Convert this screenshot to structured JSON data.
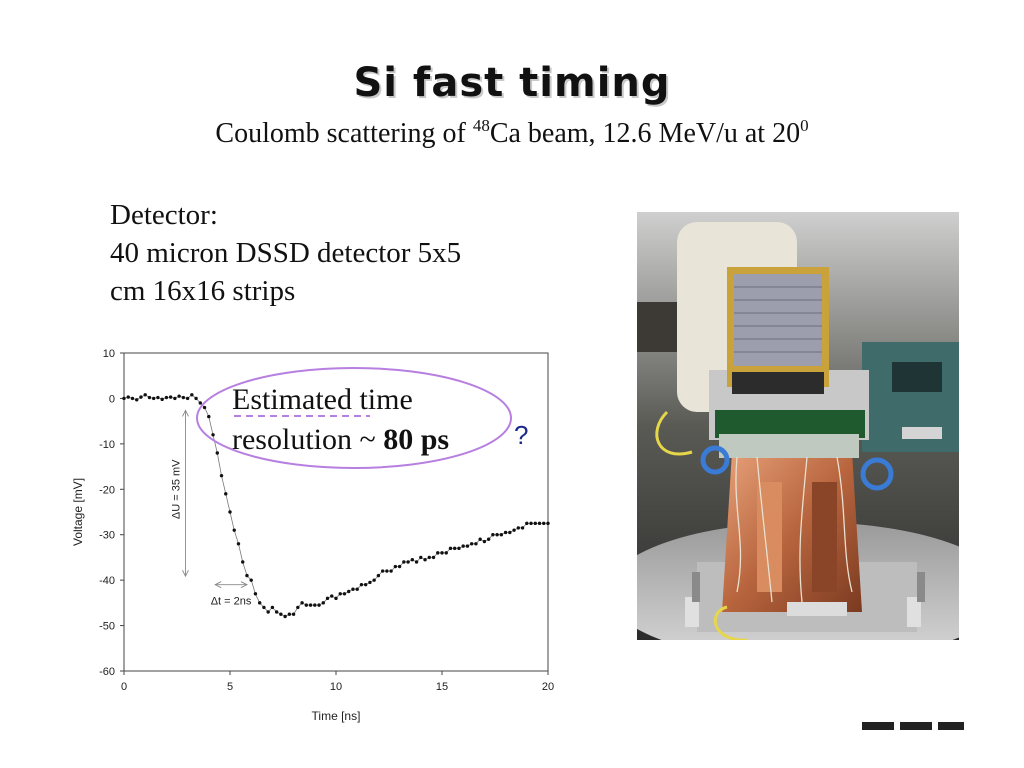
{
  "slide": {
    "title": "Si fast timing",
    "subtitle_prefix": "Coulomb scattering of ",
    "subtitle_sup": "48",
    "subtitle_middle": "Ca beam, 12.6 MeV/u at 20",
    "subtitle_sup2": "0",
    "detector_lines": [
      "Detector:",
      "40 micron DSSD detector 5x5",
      "cm 16x16 strips"
    ]
  },
  "callout": {
    "line1": "Estimated time",
    "line2_prefix": "resolution ~ ",
    "line2_bold": "80 ps",
    "question": "?",
    "ellipse_color": "#b77fe0",
    "underline_color": "#b77fe0"
  },
  "photo": {
    "description_icon": "detector-photo",
    "colors": {
      "copper": "#c77b4f",
      "gold": "#c9a23c",
      "background": "#3a3a3a",
      "wire": "#e6d74a",
      "loop": "#3a7bd5"
    }
  },
  "chart_data": {
    "type": "scatter",
    "xlabel": "Time [ns]",
    "ylabel": "Voltage [mV]",
    "xlim": [
      0,
      20
    ],
    "ylim": [
      -60,
      10
    ],
    "xticks": [
      0,
      5,
      10,
      15,
      20
    ],
    "yticks": [
      10,
      0,
      -10,
      -20,
      -30,
      -40,
      -50,
      -60
    ],
    "grid": false,
    "marker_color": "#111111",
    "line_color": "#777777",
    "annotations": [
      {
        "text": "ΔU = 35 mV",
        "x": 2.9,
        "y_from": 0,
        "y_to": -40
      },
      {
        "text": "Δt = 2ns",
        "x_from": 4.3,
        "x_to": 5.8,
        "y": -41
      }
    ],
    "series": [
      {
        "x": [
          0,
          0.2,
          0.4,
          0.6,
          0.8,
          1.0,
          1.2,
          1.4,
          1.6,
          1.8,
          2.0,
          2.2,
          2.4,
          2.6,
          2.8,
          3.0,
          3.2,
          3.4,
          3.6,
          3.8,
          4.0,
          4.2,
          4.4,
          4.6,
          4.8,
          5.0,
          5.2,
          5.4,
          5.6,
          5.8,
          6.0,
          6.2,
          6.4,
          6.6,
          6.8,
          7.0,
          7.2,
          7.4,
          7.6,
          7.8,
          8.0,
          8.2,
          8.4,
          8.6,
          8.8,
          9.0,
          9.2,
          9.4,
          9.6,
          9.8,
          10.0,
          10.2,
          10.4,
          10.6,
          10.8,
          11.0,
          11.2,
          11.4,
          11.6,
          11.8,
          12.0,
          12.2,
          12.4,
          12.6,
          12.8,
          13.0,
          13.2,
          13.4,
          13.6,
          13.8,
          14.0,
          14.2,
          14.4,
          14.6,
          14.8,
          15.0,
          15.2,
          15.4,
          15.6,
          15.8,
          16.0,
          16.2,
          16.4,
          16.6,
          16.8,
          17.0,
          17.2,
          17.4,
          17.6,
          17.8,
          18.0,
          18.2,
          18.4,
          18.6,
          18.8,
          19.0,
          19.2,
          19.4,
          19.6,
          19.8,
          20.0
        ],
        "y": [
          0,
          0.3,
          0,
          -0.3,
          0.3,
          0.8,
          0.2,
          0,
          0.2,
          -0.2,
          0.2,
          0.3,
          0,
          0.5,
          0.2,
          0,
          0.8,
          0,
          -1,
          -2,
          -4,
          -8,
          -12,
          -17,
          -21,
          -25,
          -29,
          -32,
          -36,
          -39,
          -40,
          -43,
          -45,
          -46,
          -47,
          -46,
          -47,
          -47.5,
          -48,
          -47.5,
          -47.5,
          -46,
          -45,
          -45.5,
          -45.5,
          -45.5,
          -45.5,
          -45,
          -44,
          -43.5,
          -44,
          -43,
          -43,
          -42.5,
          -42,
          -42,
          -41,
          -41,
          -40.5,
          -40,
          -39,
          -38,
          -38,
          -38,
          -37,
          -37,
          -36,
          -36,
          -35.5,
          -36,
          -35,
          -35.5,
          -35,
          -35,
          -34,
          -34,
          -34,
          -33,
          -33,
          -33,
          -32.5,
          -32.5,
          -32,
          -32,
          -31,
          -31.5,
          -31,
          -30,
          -30,
          -30,
          -29.5,
          -29.5,
          -29,
          -28.5,
          -28.5,
          -27.5,
          -27.5,
          -27.5,
          -27.5,
          -27.5,
          -27.5
        ]
      }
    ]
  }
}
